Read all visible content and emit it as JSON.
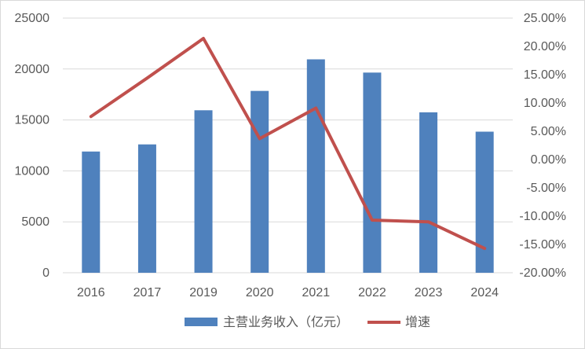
{
  "chart_data": {
    "type": "bar+line",
    "categories": [
      "2016",
      "2017",
      "2019",
      "2020",
      "2021",
      "2022",
      "2023",
      "2024"
    ],
    "series": [
      {
        "name": "主营业务收入（亿元）",
        "type": "bar",
        "axis": "left",
        "values": [
          11900,
          12600,
          15950,
          17850,
          20950,
          19650,
          15750,
          13850
        ]
      },
      {
        "name": "增速",
        "type": "line",
        "axis": "right",
        "values": [
          7.6,
          14.4,
          21.4,
          3.7,
          9.1,
          -10.7,
          -11.0,
          -15.7
        ]
      }
    ],
    "y_left": {
      "min": 0,
      "max": 25000,
      "ticks": [
        "0",
        "5000",
        "10000",
        "15000",
        "20000",
        "25000"
      ]
    },
    "y_right": {
      "min": -20,
      "max": 25,
      "ticks": [
        "-20.00%",
        "-15.00%",
        "-10.00%",
        "-5.00%",
        "0.00%",
        "5.00%",
        "10.00%",
        "15.00%",
        "20.00%",
        "25.00%"
      ]
    },
    "grid": true,
    "legend": "bottom",
    "colors": {
      "bar": "#4f81bd",
      "line": "#c0504d",
      "grid": "#d9d9d9",
      "text": "#595959"
    }
  }
}
